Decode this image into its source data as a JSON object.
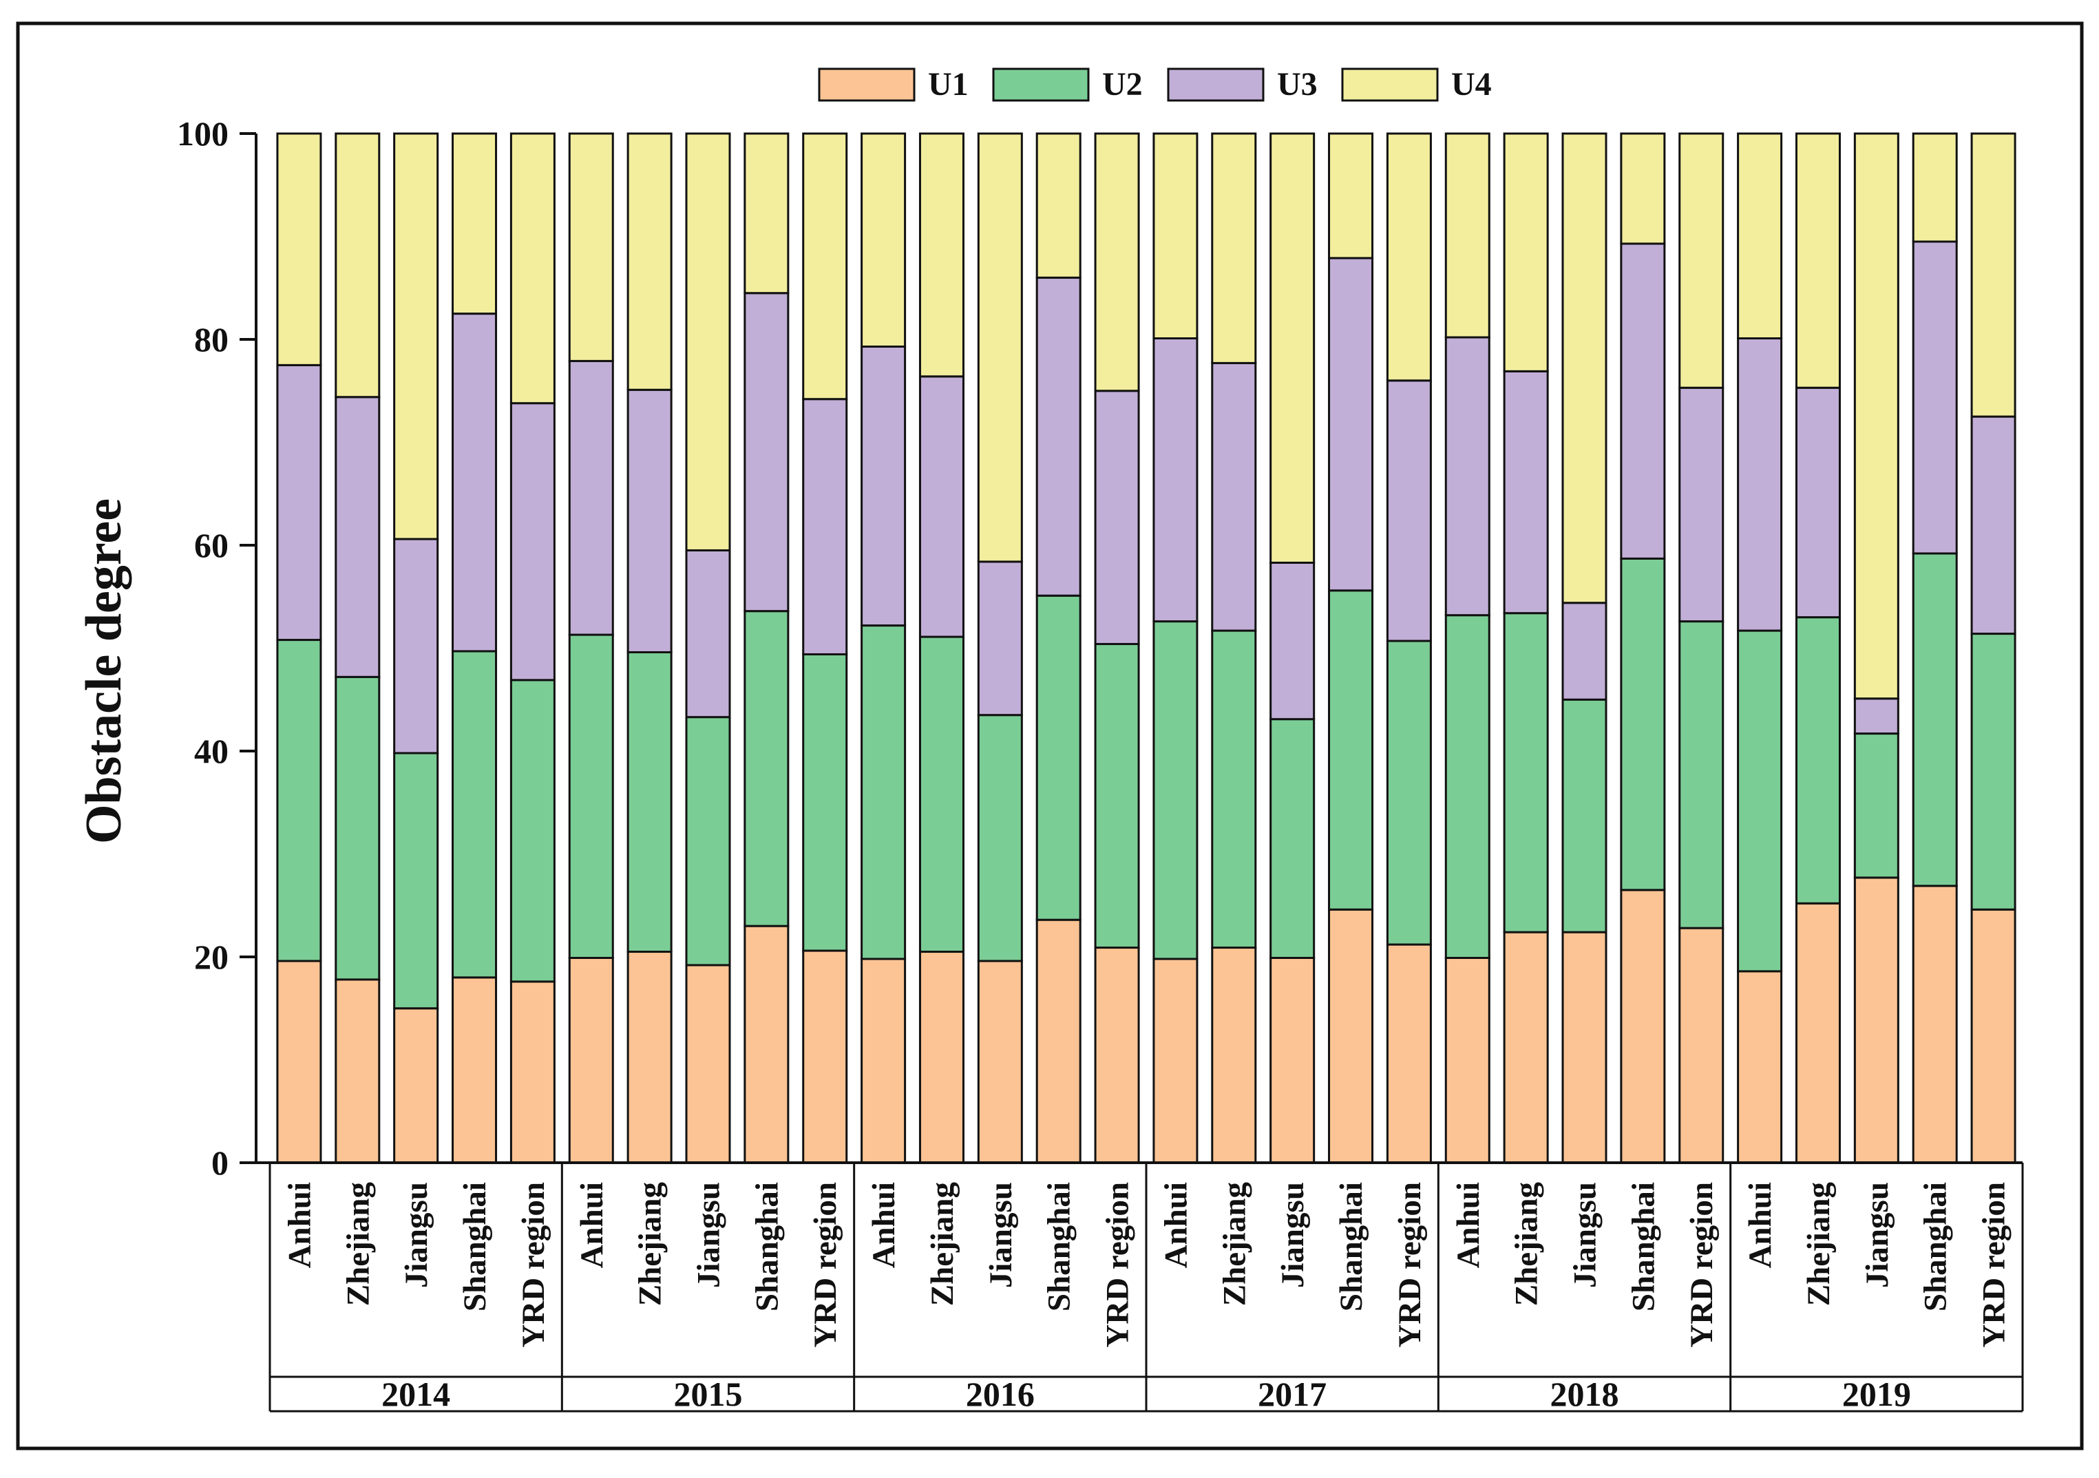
{
  "chart_data": {
    "type": "bar",
    "stacked": true,
    "title": "",
    "xlabel": "",
    "ylabel": "Obstacle degree",
    "ylim": [
      0,
      100
    ],
    "yticks": [
      "0",
      "20",
      "40",
      "60",
      "80",
      "100"
    ],
    "legend": {
      "position": "top-center",
      "entries": [
        "U1",
        "U2",
        "U3",
        "U4"
      ]
    },
    "colors": {
      "U1": "#FCC494",
      "U2": "#7BCD96",
      "U3": "#C2AFD7",
      "U4": "#F2EE9E"
    },
    "groups": [
      "2014",
      "2015",
      "2016",
      "2017",
      "2018",
      "2019"
    ],
    "categories": [
      "Anhui",
      "Zhejiang",
      "Jiangsu",
      "Shanghai",
      "YRD region"
    ],
    "series": [
      {
        "name": "U1",
        "values": [
          [
            19.6,
            17.8,
            15.0,
            18.0,
            17.6
          ],
          [
            19.9,
            20.5,
            19.2,
            23.0,
            20.6
          ],
          [
            19.8,
            20.5,
            19.6,
            23.6,
            20.9
          ],
          [
            19.8,
            20.9,
            19.9,
            24.6,
            21.2
          ],
          [
            19.9,
            22.4,
            22.4,
            26.5,
            22.8
          ],
          [
            18.6,
            25.2,
            27.7,
            26.9,
            24.6
          ]
        ]
      },
      {
        "name": "U2",
        "values": [
          [
            31.2,
            29.4,
            24.8,
            31.7,
            29.3
          ],
          [
            31.4,
            29.1,
            24.1,
            30.6,
            28.8
          ],
          [
            32.4,
            30.6,
            23.9,
            31.5,
            29.5
          ],
          [
            32.8,
            30.8,
            23.2,
            31.0,
            29.5
          ],
          [
            33.3,
            31.0,
            22.6,
            32.2,
            29.8
          ],
          [
            33.1,
            27.8,
            14.0,
            32.3,
            26.8
          ]
        ]
      },
      {
        "name": "U3",
        "values": [
          [
            26.7,
            27.2,
            20.8,
            32.8,
            26.9
          ],
          [
            26.6,
            25.5,
            16.2,
            30.9,
            24.8
          ],
          [
            27.1,
            25.3,
            14.9,
            30.9,
            24.6
          ],
          [
            27.5,
            26.0,
            15.2,
            32.3,
            25.3
          ],
          [
            27.0,
            23.5,
            9.4,
            30.6,
            22.7
          ],
          [
            28.4,
            22.3,
            3.4,
            30.3,
            21.1
          ]
        ]
      },
      {
        "name": "U4",
        "values": [
          [
            22.5,
            25.6,
            39.4,
            17.5,
            26.2
          ],
          [
            22.1,
            24.9,
            40.5,
            15.5,
            25.8
          ],
          [
            20.7,
            23.6,
            41.6,
            14.0,
            25.0
          ],
          [
            19.9,
            22.3,
            41.7,
            12.1,
            24.0
          ],
          [
            19.8,
            23.1,
            45.6,
            10.7,
            24.7
          ],
          [
            19.9,
            24.7,
            54.9,
            10.5,
            27.5
          ]
        ]
      }
    ]
  }
}
